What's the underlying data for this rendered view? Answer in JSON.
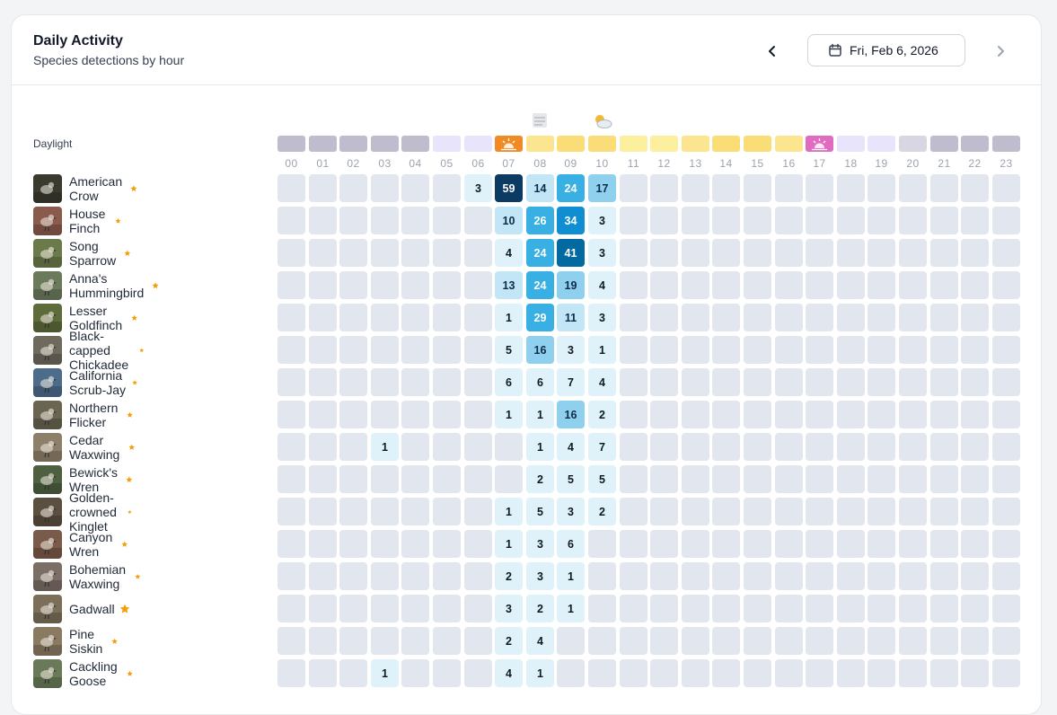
{
  "header": {
    "title": "Daily Activity",
    "subtitle": "Species detections by hour",
    "date": "Fri, Feb 6, 2026"
  },
  "daylight_label": "Daylight",
  "hours": [
    "00",
    "01",
    "02",
    "03",
    "04",
    "05",
    "06",
    "07",
    "08",
    "09",
    "10",
    "11",
    "12",
    "13",
    "14",
    "15",
    "16",
    "17",
    "18",
    "19",
    "20",
    "21",
    "22",
    "23"
  ],
  "daylight": [
    "night",
    "night",
    "night",
    "night",
    "night",
    "twilight",
    "twilight",
    "sunrise",
    "day-light",
    "day-mid",
    "day-mid",
    "day-pale",
    "day-pale",
    "day-light",
    "day-mid",
    "day-mid",
    "day-light",
    "sunset",
    "twilight",
    "twilight",
    "dusk",
    "night",
    "night",
    "night"
  ],
  "daylight_colors": {
    "night": "#bfbcce",
    "dusk": "#d8d6e2",
    "twilight": "#e8e4fb",
    "sunrise": "#f08a24",
    "sunset": "#e26bc2",
    "day-pale": "#fcef9e",
    "day-light": "#fbe58f",
    "day-mid": "#fbdd78"
  },
  "weather": [
    {
      "hour": "08",
      "icon": "fog-icon"
    },
    {
      "hour": "10",
      "icon": "partly-cloudy-icon"
    }
  ],
  "species": [
    {
      "name": "American Crow",
      "avatar": "#3b3a2e",
      "counts": {
        "06": 3,
        "07": 59,
        "08": 14,
        "09": 24,
        "10": 17
      }
    },
    {
      "name": "House Finch",
      "avatar": "#8a5a4c",
      "counts": {
        "07": 10,
        "08": 26,
        "09": 34,
        "10": 3
      }
    },
    {
      "name": "Song Sparrow",
      "avatar": "#6b7a4a",
      "counts": {
        "07": 4,
        "08": 24,
        "09": 41,
        "10": 3
      }
    },
    {
      "name": "Anna's Hummingbird",
      "avatar": "#6c7a5c",
      "counts": {
        "07": 13,
        "08": 24,
        "09": 19,
        "10": 4
      }
    },
    {
      "name": "Lesser Goldfinch",
      "avatar": "#5e6b3a",
      "counts": {
        "07": 1,
        "08": 29,
        "09": 11,
        "10": 3
      }
    },
    {
      "name": "Black-capped Chickadee",
      "avatar": "#6e6a5e",
      "counts": {
        "07": 5,
        "08": 16,
        "09": 3,
        "10": 1
      }
    },
    {
      "name": "California Scrub-Jay",
      "avatar": "#4d6b8a",
      "counts": {
        "07": 6,
        "08": 6,
        "09": 7,
        "10": 4
      }
    },
    {
      "name": "Northern Flicker",
      "avatar": "#6a6550",
      "counts": {
        "07": 1,
        "08": 1,
        "09": 16,
        "10": 2
      }
    },
    {
      "name": "Cedar Waxwing",
      "avatar": "#8e7f6a",
      "counts": {
        "03": 1,
        "08": 1,
        "09": 4,
        "10": 7
      }
    },
    {
      "name": "Bewick's Wren",
      "avatar": "#4e6040",
      "counts": {
        "08": 2,
        "09": 5,
        "10": 5
      }
    },
    {
      "name": "Golden-crowned Kinglet",
      "avatar": "#5b5040",
      "counts": {
        "07": 1,
        "08": 5,
        "09": 3,
        "10": 2
      }
    },
    {
      "name": "Canyon Wren",
      "avatar": "#7a5a48",
      "counts": {
        "07": 1,
        "08": 3,
        "09": 6
      }
    },
    {
      "name": "Bohemian Waxwing",
      "avatar": "#7a6e66",
      "counts": {
        "07": 2,
        "08": 3,
        "09": 1
      }
    },
    {
      "name": "Gadwall",
      "avatar": "#7c6f5a",
      "counts": {
        "07": 3,
        "08": 2,
        "09": 1
      }
    },
    {
      "name": "Pine Siskin",
      "avatar": "#8a7a62",
      "counts": {
        "07": 2,
        "08": 4
      }
    },
    {
      "name": "Cackling Goose",
      "avatar": "#6a7a58",
      "counts": {
        "03": 1,
        "07": 4,
        "08": 1
      }
    }
  ],
  "icons": {
    "prev": "chevron-left-icon",
    "next": "chevron-right-icon",
    "calendar": "calendar-icon",
    "favorite": "star-icon"
  },
  "colors": {
    "empty_cell": "#e2e6ee",
    "star": "#f59e0b",
    "scale": [
      "#e0f2f9",
      "#c2e6f5",
      "#8fd0ee",
      "#38b0e3",
      "#0f8fd1",
      "#0369a1",
      "#0b3b63"
    ]
  }
}
